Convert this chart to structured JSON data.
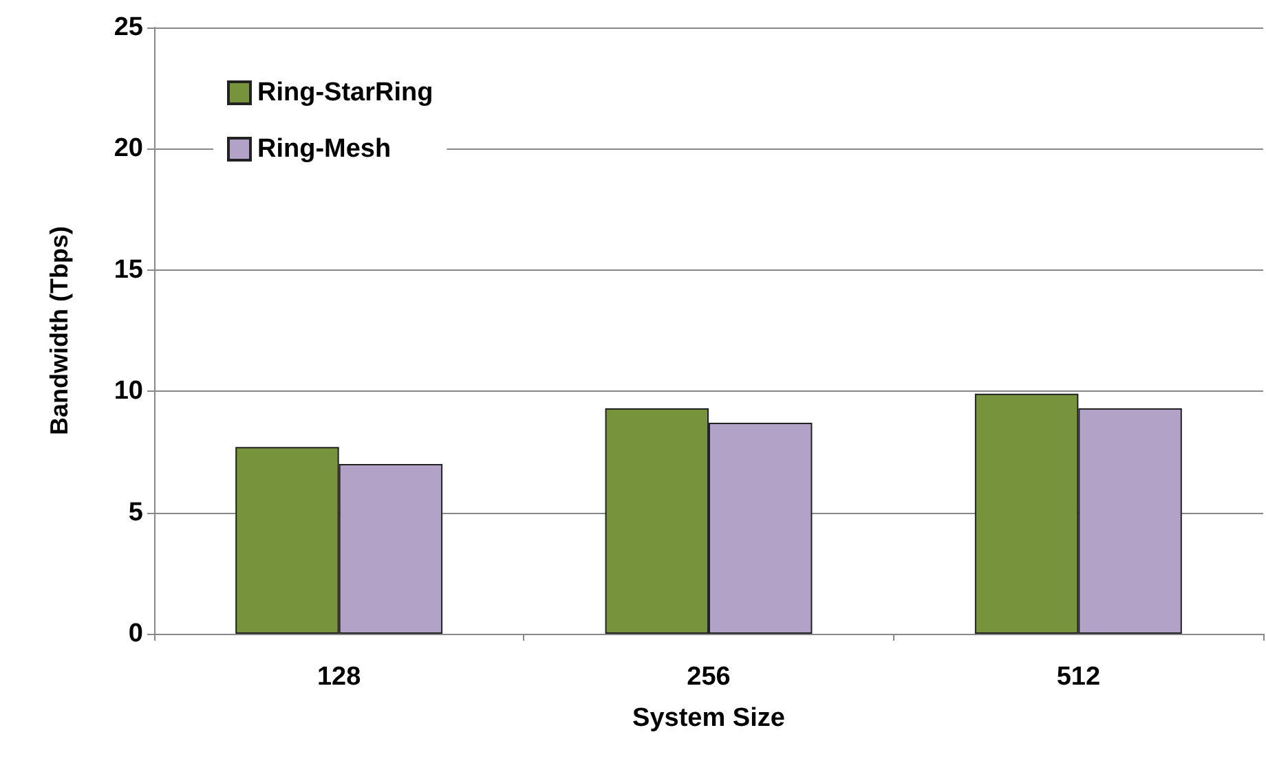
{
  "chart_data": {
    "type": "bar",
    "xlabel": "System Size",
    "ylabel": "Bandwidth (Tbps)",
    "categories": [
      "128",
      "256",
      "512"
    ],
    "series": [
      {
        "name": "Ring-StarRing",
        "color": "#77933c",
        "values": [
          7.7,
          9.3,
          9.9
        ]
      },
      {
        "name": "Ring-Mesh",
        "color": "#b3a2c7",
        "values": [
          7.0,
          8.7,
          9.3
        ]
      }
    ],
    "ylim": [
      0,
      25
    ],
    "yticks": [
      0,
      5,
      10,
      15,
      20,
      25
    ],
    "grid": "y",
    "legend": "top left"
  }
}
